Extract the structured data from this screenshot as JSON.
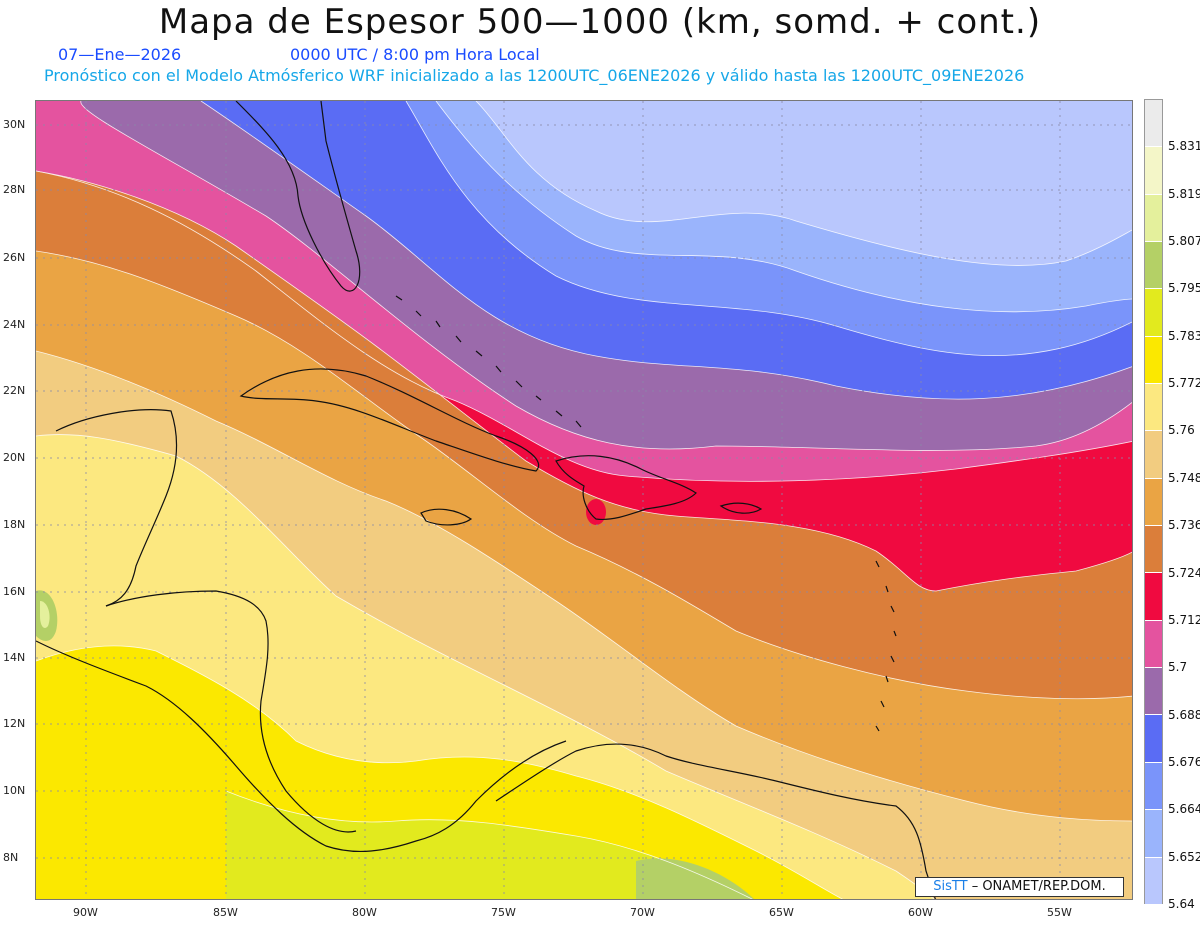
{
  "title": "Mapa de Espesor 500—1000 (km, somd. + cont.)",
  "date": "07—Ene—2026",
  "time_label": "0000 UTC / 8:00 pm Hora Local",
  "description": "Pronóstico con el Modelo Atmósferico WRF inicializado a las 1200UTC_06ENE2026 y válido hasta las  1200UTC_09ENE2026",
  "credit": {
    "brand": "SisTT",
    "text": " – ONAMET/REP.DOM."
  },
  "map": {
    "lat_labels": [
      "30N",
      "28N",
      "26N",
      "24N",
      "22N",
      "20N",
      "18N",
      "16N",
      "14N",
      "12N",
      "10N",
      "8N"
    ],
    "lon_labels": [
      "90W",
      "85W",
      "80W",
      "75W",
      "70W",
      "65W",
      "60W",
      "55W"
    ],
    "grid": true,
    "shading_variable": "500–1000 hPa thickness"
  },
  "legend": {
    "labels": [
      "5.831",
      "5.819",
      "5.807",
      "5.795",
      "5.783",
      "5.772",
      "5.76",
      "5.748",
      "5.736",
      "5.724",
      "5.712",
      "5.7",
      "5.688",
      "5.676",
      "5.664",
      "5.652",
      "5.64"
    ],
    "colors": [
      "#ebebeb",
      "#f4f6c8",
      "#e4f09c",
      "#b4d066",
      "#e2ea1e",
      "#fbe800",
      "#fce880",
      "#f2cc80",
      "#eaa444",
      "#db7e3a",
      "#f00a40",
      "#e4539f",
      "#9b6aab",
      "#5a6cf4",
      "#7a94fa",
      "#9ab4fc",
      "#b9c7fd"
    ]
  }
}
